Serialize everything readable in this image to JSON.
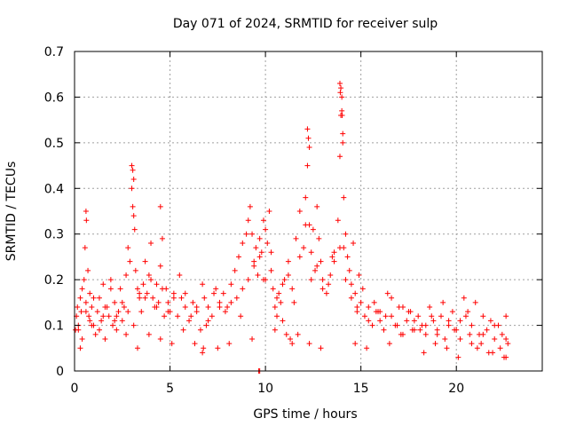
{
  "chart_data": {
    "type": "scatter",
    "title": "Day 071 of 2024, SRMTID for receiver sulp",
    "xlabel": "GPS time / hours",
    "ylabel": "SRMTID / TECUs",
    "xlim": [
      0,
      24.5
    ],
    "ylim": [
      0,
      0.7
    ],
    "x_ticks": [
      0,
      5,
      10,
      15,
      20
    ],
    "x_tick_labels": [
      "0",
      "5",
      "10",
      "15",
      "20"
    ],
    "y_ticks": [
      0,
      0.1,
      0.2,
      0.3,
      0.4,
      0.5,
      0.6,
      0.7
    ],
    "y_tick_labels": [
      "0",
      "0.1",
      "0.2",
      "0.3",
      "0.4",
      "0.5",
      "0.6",
      "0.7"
    ],
    "grid": true,
    "marker": "plus",
    "color": "#ff0000",
    "series": [
      {
        "name": "SRMTID",
        "x": [
          0.05,
          0.1,
          0.15,
          0.2,
          0.3,
          0.35,
          0.4,
          0.5,
          0.55,
          0.6,
          0.7,
          0.75,
          0.8,
          0.9,
          1.0,
          1.1,
          1.2,
          1.3,
          1.4,
          1.5,
          1.6,
          1.7,
          1.8,
          1.9,
          2.0,
          2.1,
          2.2,
          2.3,
          2.4,
          2.5,
          2.6,
          2.7,
          2.8,
          2.9,
          3.0,
          3.05,
          3.1,
          3.15,
          3.2,
          3.3,
          3.4,
          3.5,
          3.6,
          3.7,
          3.8,
          3.9,
          4.0,
          4.1,
          4.2,
          4.3,
          4.4,
          4.5,
          4.6,
          4.7,
          4.8,
          4.9,
          5.0,
          5.2,
          5.4,
          5.6,
          5.8,
          6.0,
          6.2,
          6.4,
          6.6,
          6.8,
          7.0,
          7.2,
          7.4,
          7.6,
          7.8,
          8.0,
          8.2,
          8.4,
          8.6,
          8.8,
          9.0,
          9.1,
          9.2,
          9.3,
          9.4,
          9.5,
          9.6,
          9.7,
          9.8,
          9.9,
          10.0,
          10.1,
          10.2,
          10.3,
          10.4,
          10.5,
          10.6,
          10.7,
          10.8,
          10.9,
          11.0,
          11.2,
          11.4,
          11.6,
          11.8,
          12.0,
          12.1,
          12.2,
          12.3,
          12.4,
          12.5,
          12.6,
          12.7,
          12.8,
          12.9,
          13.0,
          13.2,
          13.4,
          13.6,
          13.8,
          13.9,
          13.95,
          14.0,
          14.05,
          14.1,
          14.2,
          14.3,
          14.4,
          14.5,
          14.6,
          14.7,
          14.8,
          14.9,
          15.0,
          15.2,
          15.4,
          15.6,
          15.8,
          16.0,
          16.2,
          16.4,
          16.6,
          16.8,
          17.0,
          17.2,
          17.4,
          17.6,
          17.8,
          18.0,
          18.2,
          18.4,
          18.6,
          18.8,
          19.0,
          19.2,
          19.4,
          19.6,
          19.8,
          20.0,
          20.2,
          20.4,
          20.6,
          20.8,
          21.0,
          21.2,
          21.4,
          21.6,
          21.8,
          22.0,
          22.2,
          22.4,
          22.6,
          22.7,
          0.2,
          0.4,
          0.6,
          0.8,
          1.0,
          1.3,
          1.6,
          1.9,
          2.2,
          2.5,
          2.8,
          3.1,
          3.4,
          3.7,
          4.0,
          4.3,
          4.6,
          4.9,
          5.2,
          5.5,
          5.8,
          6.1,
          6.4,
          6.7,
          7.0,
          7.3,
          7.6,
          7.9,
          8.2,
          8.5,
          8.8,
          9.1,
          9.4,
          9.7,
          10.0,
          10.3,
          10.6,
          10.9,
          11.2,
          11.5,
          11.8,
          12.1,
          12.4,
          12.7,
          13.0,
          13.3,
          13.6,
          13.9,
          14.2,
          14.5,
          14.8,
          15.1,
          15.4,
          15.7,
          16.0,
          16.3,
          16.6,
          16.9,
          17.2,
          17.5,
          17.8,
          18.1,
          18.4,
          18.7,
          19.0,
          19.3,
          19.6,
          19.9,
          20.2,
          20.5,
          20.8,
          21.1,
          21.4,
          21.7,
          22.0,
          22.3,
          22.6,
          0.3,
          0.9,
          1.5,
          2.1,
          2.7,
          3.3,
          3.9,
          4.5,
          5.1,
          5.7,
          6.3,
          6.9,
          7.5,
          8.1,
          8.7,
          9.3,
          9.9,
          10.5,
          11.1,
          11.7,
          12.3,
          12.9,
          13.5,
          14.1,
          14.7,
          15.3,
          15.9,
          16.5,
          17.1,
          17.7,
          18.3,
          18.9,
          19.5,
          20.1,
          20.7,
          21.3,
          21.9,
          22.5,
          3.0,
          3.05,
          3.1,
          12.2,
          12.25,
          12.3,
          13.9,
          13.95,
          14.0,
          14.05,
          13.92,
          14.02,
          9.65,
          9.7,
          0.6,
          0.62,
          4.5,
          6.7,
          6.75,
          11.3,
          11.4,
          22.6
        ],
        "y": [
          0.09,
          0.12,
          0.14,
          0.1,
          0.16,
          0.13,
          0.18,
          0.2,
          0.27,
          0.15,
          0.22,
          0.12,
          0.17,
          0.14,
          0.1,
          0.08,
          0.13,
          0.16,
          0.11,
          0.19,
          0.07,
          0.14,
          0.12,
          0.2,
          0.1,
          0.15,
          0.09,
          0.13,
          0.18,
          0.11,
          0.14,
          0.21,
          0.27,
          0.24,
          0.4,
          0.36,
          0.34,
          0.31,
          0.22,
          0.18,
          0.16,
          0.13,
          0.19,
          0.24,
          0.17,
          0.21,
          0.28,
          0.16,
          0.14,
          0.19,
          0.15,
          0.23,
          0.29,
          0.12,
          0.18,
          0.15,
          0.13,
          0.17,
          0.12,
          0.16,
          0.14,
          0.11,
          0.15,
          0.13,
          0.09,
          0.16,
          0.14,
          0.12,
          0.18,
          0.15,
          0.17,
          0.14,
          0.19,
          0.22,
          0.25,
          0.28,
          0.3,
          0.33,
          0.36,
          0.3,
          0.24,
          0.27,
          0.21,
          0.29,
          0.26,
          0.33,
          0.31,
          0.28,
          0.35,
          0.22,
          0.18,
          0.14,
          0.12,
          0.17,
          0.15,
          0.11,
          0.2,
          0.24,
          0.18,
          0.29,
          0.35,
          0.27,
          0.38,
          0.45,
          0.32,
          0.26,
          0.31,
          0.22,
          0.36,
          0.29,
          0.24,
          0.2,
          0.17,
          0.21,
          0.26,
          0.33,
          0.47,
          0.56,
          0.6,
          0.5,
          0.38,
          0.3,
          0.25,
          0.22,
          0.19,
          0.28,
          0.17,
          0.13,
          0.21,
          0.15,
          0.12,
          0.14,
          0.1,
          0.13,
          0.11,
          0.09,
          0.17,
          0.12,
          0.1,
          0.14,
          0.08,
          0.11,
          0.13,
          0.09,
          0.12,
          0.1,
          0.08,
          0.14,
          0.11,
          0.09,
          0.12,
          0.07,
          0.1,
          0.13,
          0.09,
          0.11,
          0.16,
          0.13,
          0.1,
          0.15,
          0.08,
          0.12,
          0.09,
          0.11,
          0.07,
          0.1,
          0.08,
          0.12,
          0.06,
          0.09,
          0.07,
          0.13,
          0.11,
          0.16,
          0.09,
          0.14,
          0.18,
          0.12,
          0.15,
          0.13,
          0.1,
          0.17,
          0.16,
          0.2,
          0.14,
          0.18,
          0.13,
          0.16,
          0.21,
          0.17,
          0.12,
          0.14,
          0.19,
          0.11,
          0.17,
          0.14,
          0.13,
          0.15,
          0.16,
          0.18,
          0.2,
          0.23,
          0.25,
          0.2,
          0.26,
          0.16,
          0.19,
          0.21,
          0.15,
          0.25,
          0.32,
          0.2,
          0.23,
          0.18,
          0.19,
          0.24,
          0.27,
          0.2,
          0.16,
          0.14,
          0.18,
          0.11,
          0.15,
          0.13,
          0.12,
          0.16,
          0.1,
          0.14,
          0.13,
          0.11,
          0.09,
          0.1,
          0.12,
          0.08,
          0.15,
          0.11,
          0.09,
          0.07,
          0.12,
          0.06,
          0.05,
          0.08,
          0.04,
          0.1,
          0.05,
          0.07,
          0.05,
          0.1,
          0.12,
          0.11,
          0.08,
          0.05,
          0.08,
          0.07,
          0.06,
          0.09,
          0.06,
          0.1,
          0.05,
          0.06,
          0.12,
          0.07,
          0.2,
          0.09,
          0.08,
          0.08,
          0.06,
          0.05,
          0.25,
          0.27,
          0.06,
          0.05,
          0.13,
          0.06,
          0.08,
          0.09,
          0.04,
          0.06,
          0.05,
          0.03,
          0.08,
          0.06,
          0.04,
          0.03,
          0.45,
          0.44,
          0.42,
          0.53,
          0.51,
          0.49,
          0.63,
          0.62,
          0.57,
          0.52,
          0.61,
          0.56,
          0.0,
          0.0,
          0.35,
          0.33,
          0.36,
          0.04,
          0.05,
          0.07,
          0.06,
          0.03
        ]
      }
    ]
  }
}
